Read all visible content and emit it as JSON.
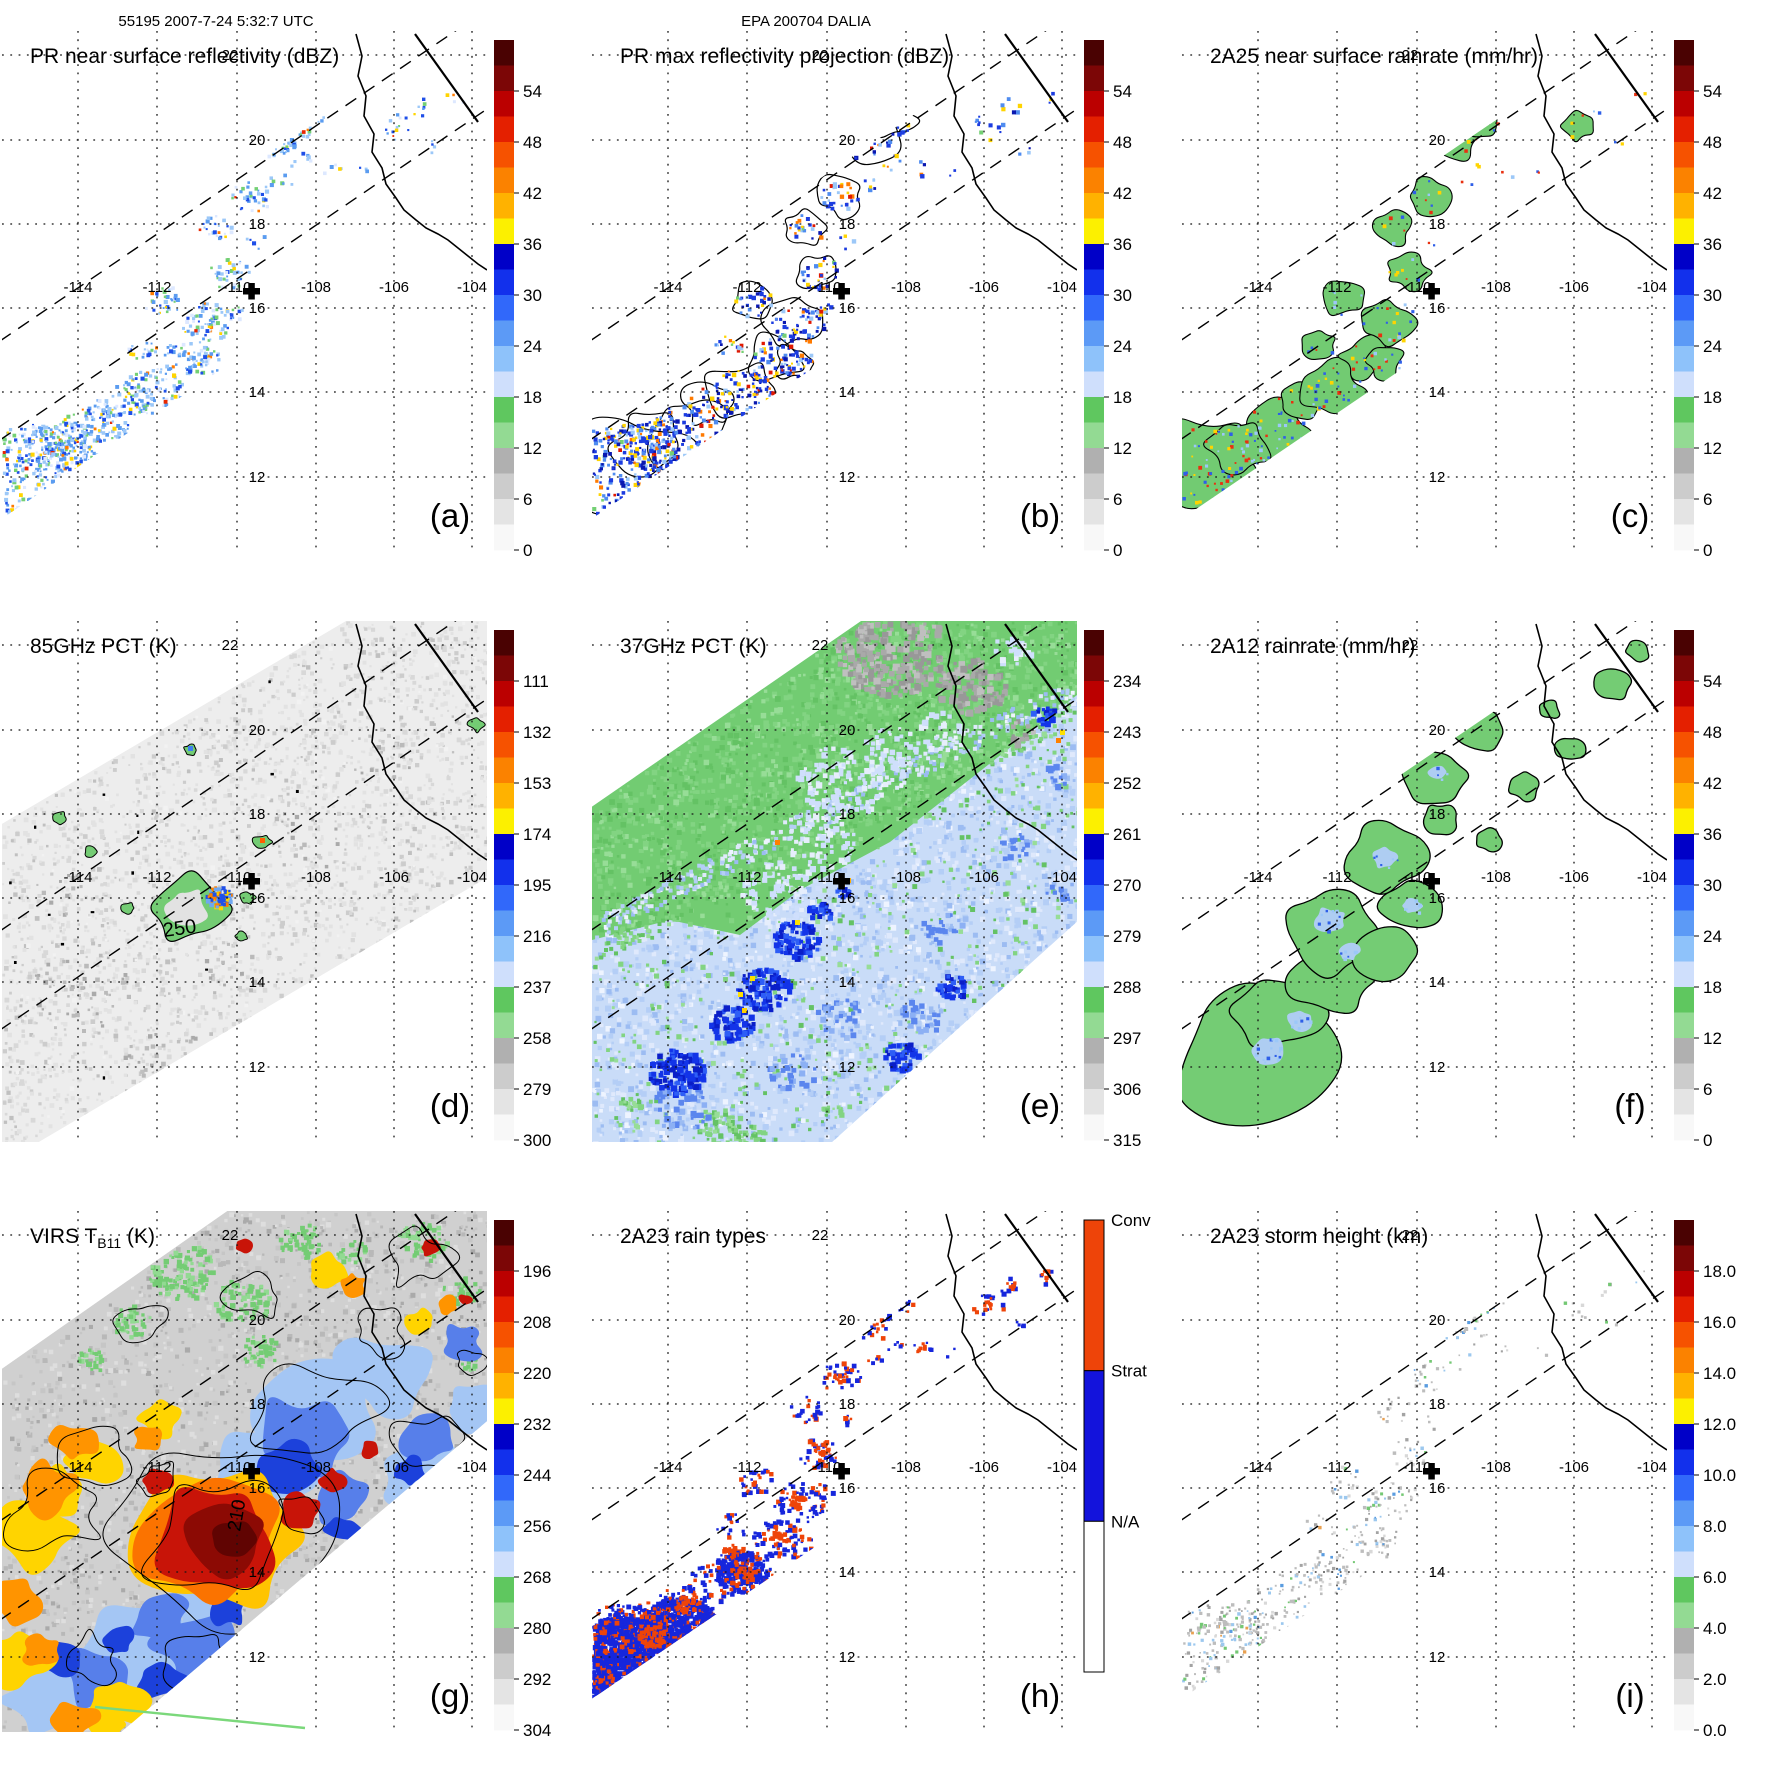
{
  "header": {
    "left": "55195 2007-7-24 5:32:7 UTC",
    "center": "EPA 200704 DALIA"
  },
  "grid": {
    "lon_labels": [
      "-114",
      "-112",
      "-110",
      "-108",
      "-106",
      "-104"
    ],
    "lat_labels": [
      "22",
      "20",
      "18",
      "16",
      "14",
      "12"
    ]
  },
  "colorbar_cells": [
    "#4a0202",
    "#7c0606",
    "#bb0000",
    "#e42000",
    "#f65200",
    "#fb8200",
    "#ffb200",
    "#fcf000",
    "#0000c8",
    "#1230ec",
    "#3168fa",
    "#5c9af6",
    "#8ec2fa",
    "#cfdffc",
    "#5fc75f",
    "#93da93",
    "#b0b0b0",
    "#cccccc",
    "#e4e4e4",
    "#f8f8f8"
  ],
  "colorbars": {
    "dbz": {
      "labels": [
        "54",
        "48",
        "42",
        "36",
        "30",
        "24",
        "18",
        "12",
        "6",
        "0"
      ]
    },
    "pct85": {
      "labels": [
        "111",
        "132",
        "153",
        "174",
        "195",
        "216",
        "237",
        "258",
        "279",
        "300"
      ]
    },
    "pct37": {
      "labels": [
        "234",
        "243",
        "252",
        "261",
        "270",
        "279",
        "288",
        "297",
        "306",
        "315"
      ]
    },
    "virs": {
      "labels": [
        "196",
        "208",
        "220",
        "232",
        "244",
        "256",
        "268",
        "280",
        "292",
        "304"
      ]
    },
    "height": {
      "labels": [
        "18.0",
        "16.0",
        "14.0",
        "12.0",
        "10.0",
        "8.0",
        "6.0",
        "4.0",
        "2.0",
        "0.0"
      ]
    },
    "raintype": {
      "labels": [
        "Conv",
        "Strat",
        "N/A"
      ],
      "colors": [
        "#ee4409",
        "#1313dc",
        "#ffffff"
      ]
    }
  },
  "panels": [
    {
      "id": "a",
      "letter": "(a)",
      "title": "PR near surface reflectivity (dBZ)",
      "colorbar": "dbz",
      "map": "pr_z"
    },
    {
      "id": "b",
      "letter": "(b)",
      "title": "PR max reflectivity projection (dBZ)",
      "colorbar": "dbz",
      "map": "pr_zmax"
    },
    {
      "id": "c",
      "letter": "(c)",
      "title": "2A25 near surface rainrate (mm/hr)",
      "colorbar": "dbz",
      "map": "rain_2a25"
    },
    {
      "id": "d",
      "letter": "(d)",
      "title": "85GHz PCT (K)",
      "colorbar": "pct85",
      "map": "pct85",
      "contour_label": "250"
    },
    {
      "id": "e",
      "letter": "(e)",
      "title": "37GHz PCT (K)",
      "colorbar": "pct37",
      "map": "pct37"
    },
    {
      "id": "f",
      "letter": "(f)",
      "title": "2A12 rainrate (mm/hr)",
      "colorbar": "dbz",
      "map": "rain_2a12"
    },
    {
      "id": "g",
      "letter": "(g)",
      "title_pre": "VIRS T",
      "title_sub": "B11",
      "title_post": " (K)",
      "colorbar": "virs",
      "map": "virs_ir",
      "contour_label": "210"
    },
    {
      "id": "h",
      "letter": "(h)",
      "title": "2A23 rain types",
      "colorbar": "raintype",
      "map": "raintype"
    },
    {
      "id": "i",
      "letter": "(i)",
      "title": "2A23 storm height (km)",
      "colorbar": "height",
      "map": "storm_height"
    }
  ],
  "chart_data": [
    {
      "type": "heatmap",
      "panel": "(a)",
      "title": "PR near surface reflectivity (dBZ)",
      "units": "dBZ",
      "colorbar_ticks": [
        54,
        48,
        42,
        36,
        30,
        24,
        18,
        12,
        6,
        0
      ],
      "lon_range": [
        -116,
        -103.5
      ],
      "lat_range": [
        10.2,
        22.6
      ],
      "graticule_lon": [
        -114,
        -112,
        -110,
        -108,
        -106,
        -104
      ],
      "graticule_lat": [
        22,
        20,
        18,
        16,
        14,
        12
      ],
      "marker_lon": -109.8,
      "marker_lat": 16.3
    },
    {
      "type": "heatmap",
      "panel": "(b)",
      "title": "PR max reflectivity projection (dBZ)",
      "units": "dBZ",
      "colorbar_ticks": [
        54,
        48,
        42,
        36,
        30,
        24,
        18,
        12,
        6,
        0
      ],
      "lon_range": [
        -116,
        -103.5
      ],
      "lat_range": [
        10.2,
        22.6
      ],
      "marker_lon": -109.8,
      "marker_lat": 16.3
    },
    {
      "type": "heatmap",
      "panel": "(c)",
      "title": "2A25 near surface rainrate (mm/hr)",
      "units": "mm/hr",
      "colorbar_ticks": [
        54,
        48,
        42,
        36,
        30,
        24,
        18,
        12,
        6,
        0
      ],
      "lon_range": [
        -116,
        -103.5
      ],
      "lat_range": [
        10.2,
        22.6
      ],
      "marker_lon": -109.8,
      "marker_lat": 16.3
    },
    {
      "type": "heatmap",
      "panel": "(d)",
      "title": "85GHz PCT (K)",
      "units": "K",
      "colorbar_ticks": [
        111,
        132,
        153,
        174,
        195,
        216,
        237,
        258,
        279,
        300
      ],
      "contour_label": 250,
      "lon_range": [
        -116,
        -103.5
      ],
      "lat_range": [
        10.2,
        22.6
      ],
      "marker_lon": -109.8,
      "marker_lat": 16.3
    },
    {
      "type": "heatmap",
      "panel": "(e)",
      "title": "37GHz PCT (K)",
      "units": "K",
      "colorbar_ticks": [
        234,
        243,
        252,
        261,
        270,
        279,
        288,
        297,
        306,
        315
      ],
      "lon_range": [
        -116,
        -103.5
      ],
      "lat_range": [
        10.2,
        22.6
      ],
      "marker_lon": -109.8,
      "marker_lat": 16.3
    },
    {
      "type": "heatmap",
      "panel": "(f)",
      "title": "2A12 rainrate (mm/hr)",
      "units": "mm/hr",
      "colorbar_ticks": [
        54,
        48,
        42,
        36,
        30,
        24,
        18,
        12,
        6,
        0
      ],
      "lon_range": [
        -116,
        -103.5
      ],
      "lat_range": [
        10.2,
        22.6
      ],
      "marker_lon": -109.8,
      "marker_lat": 16.3
    },
    {
      "type": "heatmap",
      "panel": "(g)",
      "title": "VIRS T_B11 (K)",
      "units": "K",
      "colorbar_ticks": [
        196,
        208,
        220,
        232,
        244,
        256,
        268,
        280,
        292,
        304
      ],
      "contour_label": 210,
      "lon_range": [
        -116,
        -103.5
      ],
      "lat_range": [
        10.2,
        22.6
      ],
      "marker_lon": -109.8,
      "marker_lat": 16.3
    },
    {
      "type": "heatmap",
      "panel": "(h)",
      "title": "2A23 rain types",
      "categories": [
        "Conv",
        "Strat",
        "N/A"
      ],
      "lon_range": [
        -116,
        -103.5
      ],
      "lat_range": [
        10.2,
        22.6
      ],
      "marker_lon": -109.8,
      "marker_lat": 16.3
    },
    {
      "type": "heatmap",
      "panel": "(i)",
      "title": "2A23 storm height (km)",
      "units": "km",
      "colorbar_ticks": [
        18.0,
        16.0,
        14.0,
        12.0,
        10.0,
        8.0,
        6.0,
        4.0,
        2.0,
        0.0
      ],
      "lon_range": [
        -116,
        -103.5
      ],
      "lat_range": [
        10.2,
        22.6
      ],
      "marker_lon": -109.8,
      "marker_lat": 16.3
    }
  ]
}
